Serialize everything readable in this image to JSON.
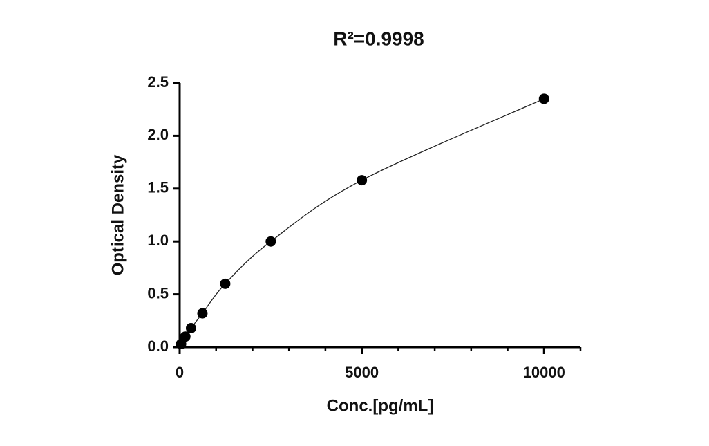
{
  "chart_data": {
    "type": "scatter",
    "title": "R²=0.9998",
    "x_label": "Conc.[pg/mL]",
    "y_label": "Optical Density",
    "x": [
      39,
      156,
      312,
      625,
      1250,
      2500,
      5000,
      10000
    ],
    "values": [
      0.03,
      0.1,
      0.18,
      0.32,
      0.6,
      1.0,
      1.58,
      2.35
    ],
    "color": "#000000",
    "xlim": [
      0,
      11000
    ],
    "xticks": [
      0,
      5000,
      10000
    ],
    "xminorticks": [
      1000,
      2000,
      3000,
      4000,
      6000,
      7000,
      8000,
      9000,
      11000
    ],
    "ylim": [
      0,
      2.5
    ],
    "yticks": [
      {
        "value": 0,
        "label": "0.0"
      },
      0.5,
      {
        "value": 1,
        "label": "1.0"
      },
      1.5,
      {
        "value": 2,
        "label": "2.0"
      },
      2.5
    ],
    "grid": false
  }
}
